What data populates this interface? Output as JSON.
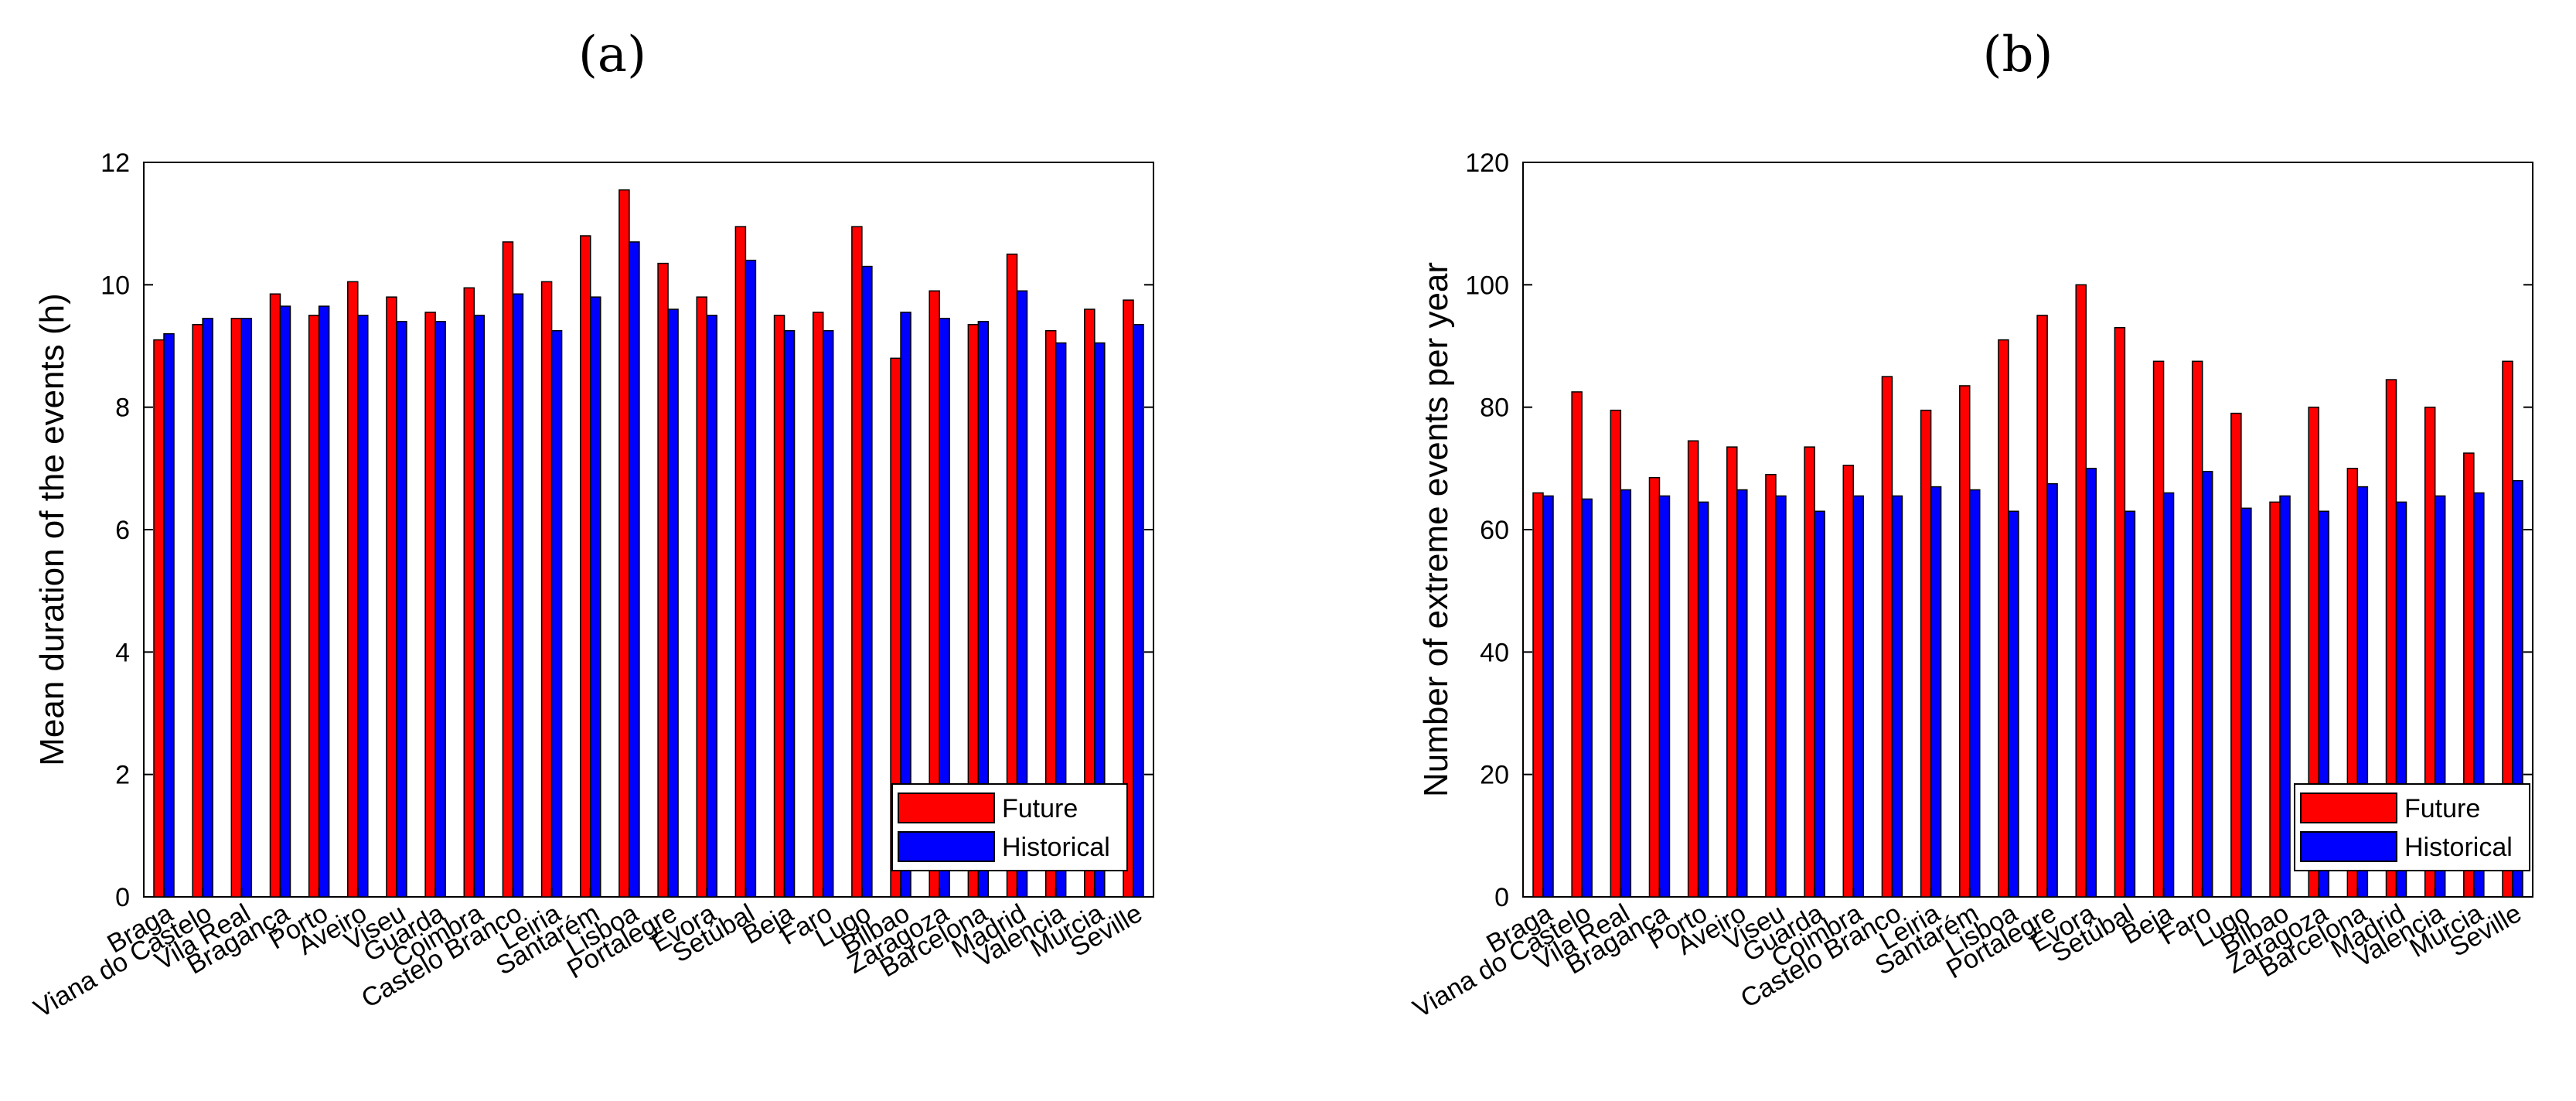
{
  "colors": {
    "future": "#ff0000",
    "historical": "#0000ff"
  },
  "chart_data": [
    {
      "type": "bar",
      "panel_label": "(a)",
      "title": "",
      "xlabel": "",
      "ylabel": "Mean duration of the events (h)",
      "ylim": [
        0,
        12
      ],
      "yticks": [
        "0",
        "2",
        "4",
        "6",
        "8",
        "10",
        "12"
      ],
      "legend_position": "bottom-right",
      "categories": [
        "Braga",
        "Viana do Castelo",
        "Vila Real",
        "Bragança",
        "Porto",
        "Aveiro",
        "Viseu",
        "Guarda",
        "Coimbra",
        "Castelo Branco",
        "Leiria",
        "Santarém",
        "Lisboa",
        "Portalegre",
        "Évora",
        "Setúbal",
        "Beja",
        "Faro",
        "Lugo",
        "Bilbao",
        "Zaragoza",
        "Barcelona",
        "Madrid",
        "Valencia",
        "Murcia",
        "Seville"
      ],
      "series": [
        {
          "name": "Future",
          "values": [
            9.1,
            9.35,
            9.45,
            9.85,
            9.5,
            10.05,
            9.8,
            9.55,
            9.95,
            10.7,
            10.05,
            10.8,
            11.55,
            10.35,
            9.8,
            10.95,
            9.5,
            9.55,
            10.95,
            8.8,
            9.9,
            9.35,
            10.5,
            9.25,
            9.6,
            9.75
          ]
        },
        {
          "name": "Historical",
          "values": [
            9.2,
            9.45,
            9.45,
            9.65,
            9.65,
            9.5,
            9.4,
            9.4,
            9.5,
            9.85,
            9.25,
            9.8,
            10.7,
            9.6,
            9.5,
            10.4,
            9.25,
            9.25,
            10.3,
            9.55,
            9.45,
            9.4,
            9.9,
            9.05,
            9.05,
            9.35
          ]
        }
      ]
    },
    {
      "type": "bar",
      "panel_label": "(b)",
      "title": "",
      "xlabel": "",
      "ylabel": "Number of extreme events per year",
      "ylim": [
        0,
        120
      ],
      "yticks": [
        "0",
        "20",
        "40",
        "60",
        "80",
        "100",
        "120"
      ],
      "legend_position": "bottom-right",
      "categories": [
        "Braga",
        "Viana do Castelo",
        "Vila Real",
        "Bragança",
        "Porto",
        "Aveiro",
        "Viseu",
        "Guarda",
        "Coimbra",
        "Castelo Branco",
        "Leiria",
        "Santarém",
        "Lisboa",
        "Portalegre",
        "Évora",
        "Setúbal",
        "Beja",
        "Faro",
        "Lugo",
        "Bilbao",
        "Zaragoza",
        "Barcelona",
        "Madrid",
        "Valencia",
        "Murcia",
        "Seville"
      ],
      "series": [
        {
          "name": "Future",
          "values": [
            66,
            82.5,
            79.5,
            68.5,
            74.5,
            73.5,
            69,
            73.5,
            70.5,
            85,
            79.5,
            83.5,
            91,
            95,
            100,
            93,
            87.5,
            87.5,
            79,
            64.5,
            80,
            70,
            84.5,
            80,
            72.5,
            87.5
          ]
        },
        {
          "name": "Historical",
          "values": [
            65.5,
            65,
            66.5,
            65.5,
            64.5,
            66.5,
            65.5,
            63,
            65.5,
            65.5,
            67,
            66.5,
            63,
            67.5,
            70,
            63,
            66,
            69.5,
            63.5,
            65.5,
            63,
            67,
            64.5,
            65.5,
            66,
            68
          ]
        }
      ]
    }
  ]
}
